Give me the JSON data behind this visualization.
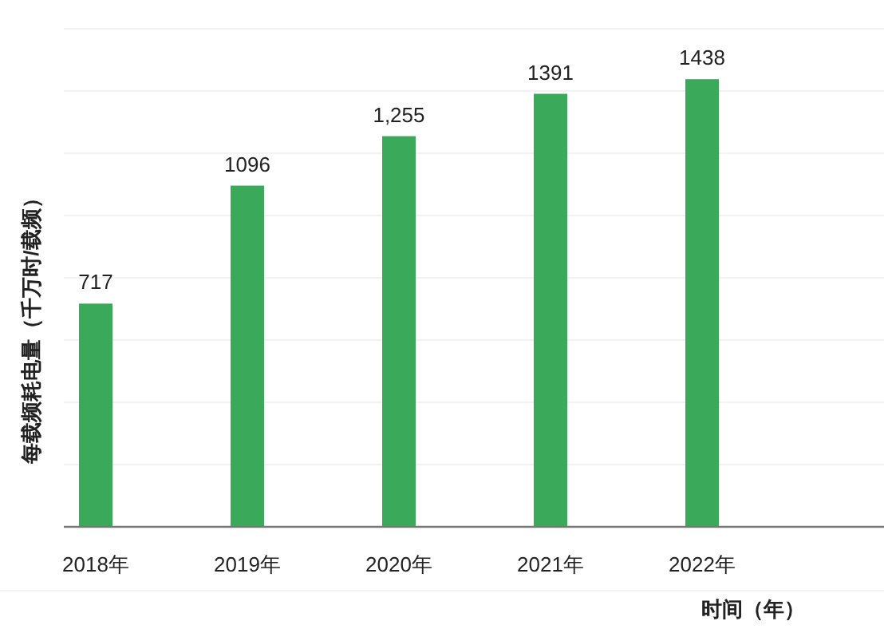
{
  "chart_data": {
    "type": "bar",
    "ylabel": "每载频耗电量（千万时/载频）",
    "xlabel": "时间（年）",
    "categories": [
      "2018年",
      "2019年",
      "2020年",
      "2021年",
      "2022年"
    ],
    "series": [
      {
        "color": "#3aaa5a",
        "values": [
          717,
          1096,
          1255,
          1391,
          1438
        ],
        "value_labels": [
          "717",
          "1096",
          "1,255",
          "1391",
          "1438"
        ]
      }
    ],
    "ylim": [
      0,
      1600
    ],
    "yticks": [
      {
        "value": 0,
        "label": null
      },
      {
        "value": 200,
        "label": null
      },
      {
        "value": 400,
        "label": null
      },
      {
        "value": 600,
        "label": null
      },
      {
        "value": 800,
        "label": null
      },
      {
        "value": 1000,
        "label": null
      },
      {
        "value": 1200,
        "label": null
      },
      {
        "value": 1400,
        "label": null
      },
      {
        "value": 1600,
        "label": null
      }
    ],
    "grid": "y",
    "tick_labels": "x"
  }
}
